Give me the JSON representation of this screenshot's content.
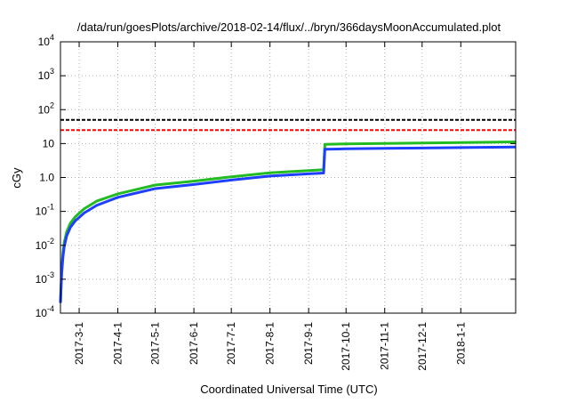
{
  "chart_data": {
    "type": "line",
    "title": "/data/run/goesPlots/archive/2018-02-14/flux/../bryn/366daysMoonAccumulated.plot",
    "xlabel": "Coordinated Universal Time (UTC)",
    "ylabel": "cGy",
    "yscale": "log",
    "ylim": [
      0.0001,
      10000
    ],
    "y_ticks": [
      {
        "base": "10",
        "exp": "-4",
        "value": 0.0001
      },
      {
        "base": "10",
        "exp": "-3",
        "value": 0.001
      },
      {
        "base": "10",
        "exp": "-2",
        "value": 0.01
      },
      {
        "base": "10",
        "exp": "-1",
        "value": 0.1
      },
      {
        "base": "1.0",
        "exp": "",
        "value": 1
      },
      {
        "base": "10",
        "exp": "",
        "value": 10
      },
      {
        "base": "10",
        "exp": "2",
        "value": 100
      },
      {
        "base": "10",
        "exp": "3",
        "value": 1000
      },
      {
        "base": "10",
        "exp": "4",
        "value": 10000
      }
    ],
    "xlim": [
      "2017-02-14",
      "2018-02-14"
    ],
    "x_ticks": [
      "2017-3-1",
      "2017-4-1",
      "2017-5-1",
      "2017-6-1",
      "2017-7-1",
      "2017-8-1",
      "2017-9-1",
      "2017-10-1",
      "2017-11-1",
      "2017-12-1",
      "2018-1-1"
    ],
    "grid": true,
    "thresholds": [
      {
        "value": 50,
        "color": "#000000",
        "style": "dashed"
      },
      {
        "value": 25,
        "color": "#ff0000",
        "style": "dashed"
      }
    ],
    "series": [
      {
        "color": "#22bb22",
        "x": [
          "2017-02-14",
          "2017-02-15",
          "2017-02-16",
          "2017-02-17",
          "2017-02-19",
          "2017-02-22",
          "2017-02-26",
          "2017-03-05",
          "2017-03-15",
          "2017-04-01",
          "2017-05-01",
          "2017-06-01",
          "2017-07-01",
          "2017-08-01",
          "2017-09-01",
          "2017-09-13",
          "2017-09-14",
          "2017-10-01",
          "2017-11-01",
          "2017-12-01",
          "2018-01-01",
          "2018-02-14"
        ],
        "values": [
          0.0002,
          0.002,
          0.006,
          0.012,
          0.025,
          0.045,
          0.07,
          0.12,
          0.2,
          0.33,
          0.6,
          0.78,
          1.05,
          1.38,
          1.6,
          1.7,
          9.5,
          9.8,
          10.1,
          10.4,
          10.7,
          11.2
        ]
      },
      {
        "color": "#1f3fff",
        "x": [
          "2017-02-14",
          "2017-02-15",
          "2017-02-16",
          "2017-02-17",
          "2017-02-19",
          "2017-02-22",
          "2017-02-26",
          "2017-03-05",
          "2017-03-15",
          "2017-04-01",
          "2017-05-01",
          "2017-06-01",
          "2017-07-01",
          "2017-08-01",
          "2017-09-01",
          "2017-09-13",
          "2017-09-14",
          "2017-10-01",
          "2017-11-01",
          "2017-12-01",
          "2018-01-01",
          "2018-02-14"
        ],
        "values": [
          0.0002,
          0.0015,
          0.0045,
          0.009,
          0.019,
          0.034,
          0.053,
          0.09,
          0.15,
          0.26,
          0.47,
          0.62,
          0.84,
          1.1,
          1.28,
          1.35,
          6.8,
          7.0,
          7.2,
          7.4,
          7.6,
          7.9
        ]
      }
    ]
  }
}
